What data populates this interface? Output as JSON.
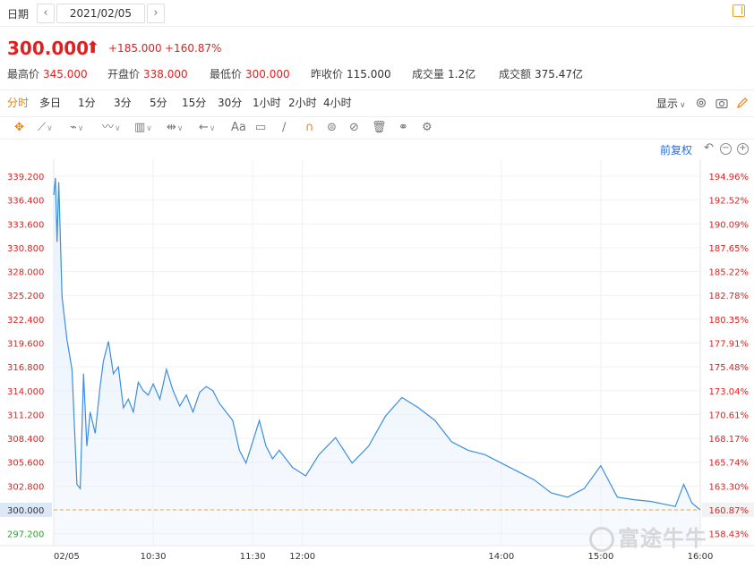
{
  "header": {
    "date_label": "日期",
    "prev_icon": "‹",
    "next_icon": "›",
    "date_value": "2021/02/05"
  },
  "quote": {
    "price": "300.000",
    "arrow": "🡅",
    "change": "+185.000",
    "change_pct": "+160.87%"
  },
  "stats": [
    {
      "label": "最高价",
      "value": "345.000",
      "color": "red"
    },
    {
      "label": "开盘价",
      "value": "338.000",
      "color": "red"
    },
    {
      "label": "最低价",
      "value": "300.000",
      "color": "red"
    },
    {
      "label": "昨收价",
      "value": "115.000",
      "color": "neutral"
    },
    {
      "label": "成交量",
      "value": "1.2亿",
      "color": "neutral"
    },
    {
      "label": "成交额",
      "value": "375.47亿",
      "color": "neutral"
    }
  ],
  "periods": [
    "分时",
    "多日",
    "1分",
    "3分",
    "5分",
    "15分",
    "30分",
    "1小时",
    "2小时",
    "4小时"
  ],
  "active_period": "分时",
  "display_label": "显示",
  "adjust_label": "前复权",
  "tools": [
    "move-icon",
    "line-icon",
    "pen-icon",
    "wave-icon",
    "chart-tool-icon",
    "range-icon",
    "arrow-left-icon",
    "text-icon",
    "comment-icon",
    "draw-icon",
    "magnet-icon",
    "lock-icon",
    "hide-icon",
    "trash-icon",
    "link-icon",
    "settings-icon"
  ],
  "text_tool_label": "Aa",
  "colors": {
    "up": "#e02020",
    "down": "#2ca02c",
    "accent": "#f08000",
    "line": "#3b8ee0",
    "fill": "#e8f1fc"
  },
  "watermark": "富途牛牛",
  "chart_data": {
    "type": "area",
    "prev_close": 115.0,
    "current_price": 300.0,
    "current_label": "300.000",
    "left_ticks": [
      "339.200",
      "336.400",
      "333.600",
      "330.800",
      "328.000",
      "325.200",
      "322.400",
      "319.600",
      "316.800",
      "314.000",
      "311.200",
      "308.400",
      "305.600",
      "302.800",
      "300.000",
      "297.200"
    ],
    "right_ticks": [
      "194.96%",
      "192.52%",
      "190.09%",
      "187.65%",
      "185.22%",
      "182.78%",
      "180.35%",
      "177.91%",
      "175.48%",
      "173.04%",
      "170.61%",
      "168.17%",
      "165.74%",
      "163.30%",
      "160.87%",
      "158.43%"
    ],
    "time_labels": [
      "02/05",
      "10:30",
      "11:30",
      "12:00",
      "14:00",
      "15:00",
      "16:00"
    ],
    "ylim": [
      295.8,
      341.2
    ],
    "x": [
      "09:30",
      "09:31",
      "09:32",
      "09:33",
      "09:35",
      "09:38",
      "09:41",
      "09:44",
      "09:46",
      "09:48",
      "09:50",
      "09:52",
      "09:55",
      "09:58",
      "10:00",
      "10:03",
      "10:06",
      "10:09",
      "10:12",
      "10:15",
      "10:18",
      "10:21",
      "10:24",
      "10:27",
      "10:30",
      "10:34",
      "10:38",
      "10:42",
      "10:46",
      "10:50",
      "10:54",
      "10:58",
      "11:02",
      "11:06",
      "11:10",
      "11:14",
      "11:18",
      "11:22",
      "11:26",
      "11:30",
      "11:34",
      "11:38",
      "11:42",
      "11:46",
      "11:50",
      "11:54",
      "11:58",
      "12:02",
      "12:10",
      "12:20",
      "12:30",
      "12:40",
      "12:50",
      "13:00",
      "13:10",
      "13:20",
      "13:30",
      "13:40",
      "13:50",
      "14:00",
      "14:10",
      "14:20",
      "14:30",
      "14:40",
      "14:50",
      "15:00",
      "15:10",
      "15:20",
      "15:30",
      "15:40",
      "15:45",
      "15:50",
      "15:55",
      "16:00"
    ],
    "y": [
      337.0,
      339.0,
      331.5,
      338.5,
      325.0,
      320.0,
      316.5,
      303.0,
      302.5,
      316.0,
      307.5,
      311.5,
      309.0,
      314.5,
      317.5,
      319.8,
      316.0,
      316.8,
      312.0,
      313.0,
      311.5,
      315.0,
      314.0,
      313.5,
      314.8,
      313.0,
      316.5,
      314.0,
      312.2,
      313.5,
      311.5,
      313.8,
      314.5,
      314.0,
      312.5,
      311.5,
      310.5,
      307.0,
      305.5,
      308.0,
      310.5,
      307.5,
      306.0,
      307.0,
      306.0,
      305.0,
      304.5,
      304.0,
      306.5,
      308.5,
      305.5,
      307.5,
      311.0,
      313.2,
      312.0,
      310.5,
      308.0,
      307.0,
      306.5,
      305.5,
      304.5,
      303.5,
      302.0,
      301.5,
      302.5,
      305.2,
      301.5,
      301.2,
      301.0,
      300.6,
      300.4,
      303.0,
      300.8,
      300.0
    ]
  }
}
